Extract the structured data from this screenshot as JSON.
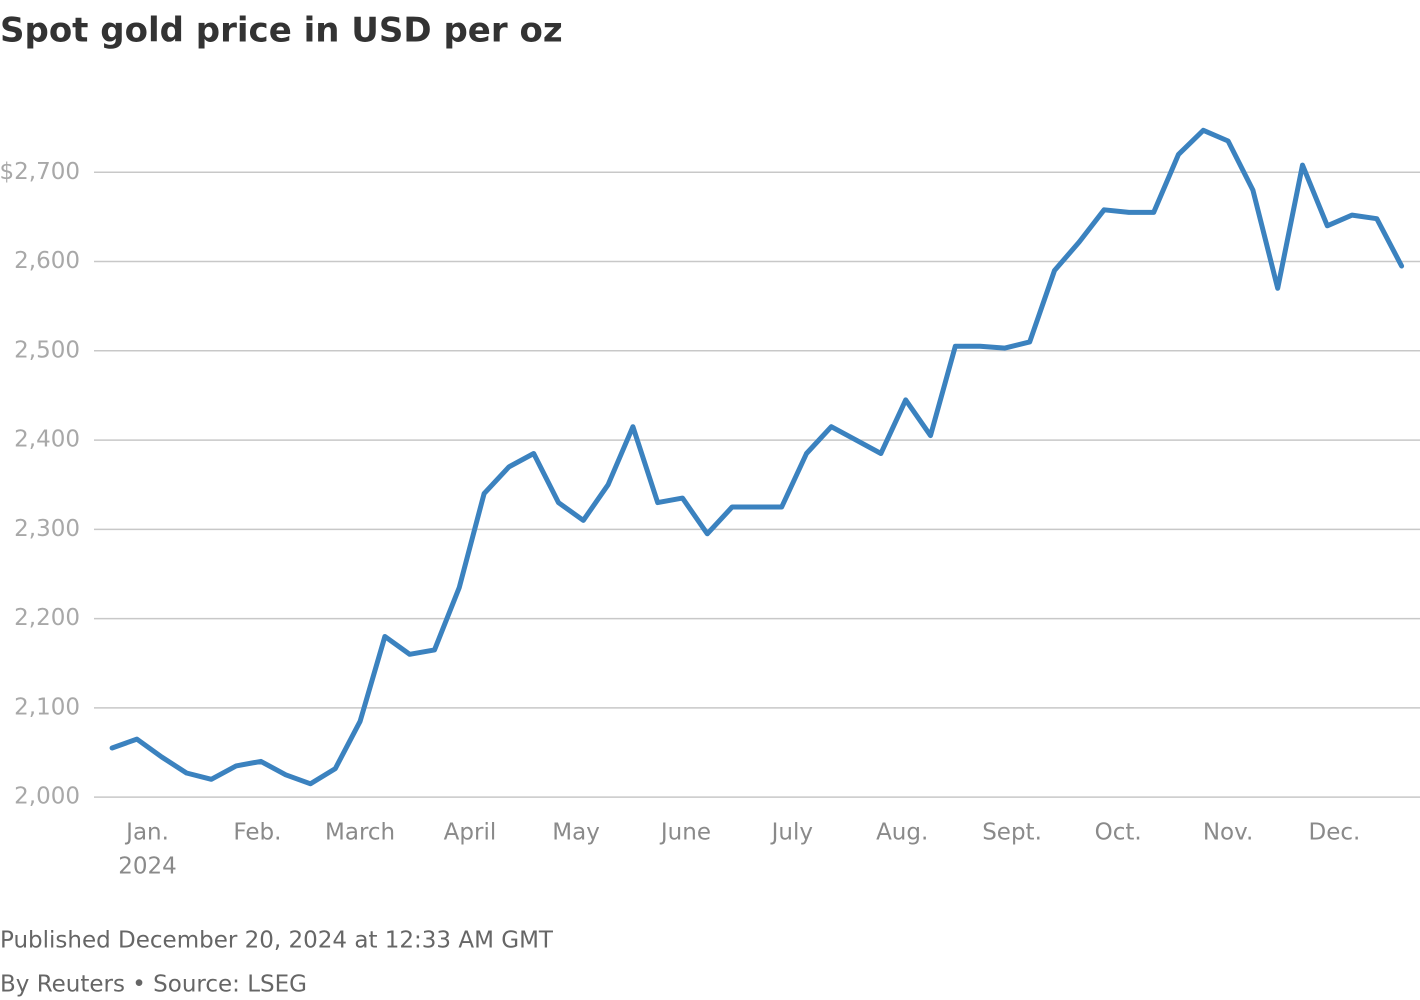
{
  "chart_data": {
    "type": "line",
    "title": "Spot gold price in USD per oz",
    "subtitle_published": "Published December 20, 2024 at 12:33 AM GMT",
    "source": "By Reuters • Source: LSEG",
    "series": [
      {
        "name": "Spot gold",
        "color": "#3b82bf",
        "values": [
          2055,
          2065,
          2045,
          2027,
          2020,
          2035,
          2040,
          2025,
          2015,
          2032,
          2085,
          2180,
          2160,
          2165,
          2235,
          2340,
          2370,
          2385,
          2330,
          2310,
          2350,
          2415,
          2330,
          2335,
          2295,
          2325,
          2325,
          2325,
          2385,
          2415,
          2400,
          2385,
          2445,
          2405,
          2505,
          2505,
          2503,
          2510,
          2590,
          2622,
          2658,
          2655,
          2655,
          2720,
          2747,
          2735,
          2680,
          2570,
          2708,
          2640,
          2652,
          2648,
          2595
        ]
      }
    ],
    "xlim": [
      -0.73,
      52.74
    ],
    "xticks": [
      {
        "value": 1.43,
        "label": "Jan."
      },
      {
        "value": 5.86,
        "label": "Feb."
      },
      {
        "value": 10,
        "label": "March"
      },
      {
        "value": 14.43,
        "label": "April"
      },
      {
        "value": 18.71,
        "label": "May"
      },
      {
        "value": 23.14,
        "label": "June"
      },
      {
        "value": 27.43,
        "label": "July"
      },
      {
        "value": 31.86,
        "label": "Aug."
      },
      {
        "value": 36.29,
        "label": "Sept."
      },
      {
        "value": 40.57,
        "label": "Oct."
      },
      {
        "value": 45,
        "label": "Nov."
      },
      {
        "value": 49.29,
        "label": "Dec."
      }
    ],
    "xtick_year": "2024",
    "ylim": [
      1980,
      2800
    ],
    "yticks": [
      {
        "value": 2000,
        "label": "2,000"
      },
      {
        "value": 2100,
        "label": "2,100"
      },
      {
        "value": 2200,
        "label": "2,200"
      },
      {
        "value": 2300,
        "label": "2,300"
      },
      {
        "value": 2400,
        "label": "2,400"
      },
      {
        "value": 2500,
        "label": "2,500"
      },
      {
        "value": 2600,
        "label": "2,600"
      },
      {
        "value": 2700,
        "label": "$2,700"
      }
    ],
    "grid": true
  }
}
